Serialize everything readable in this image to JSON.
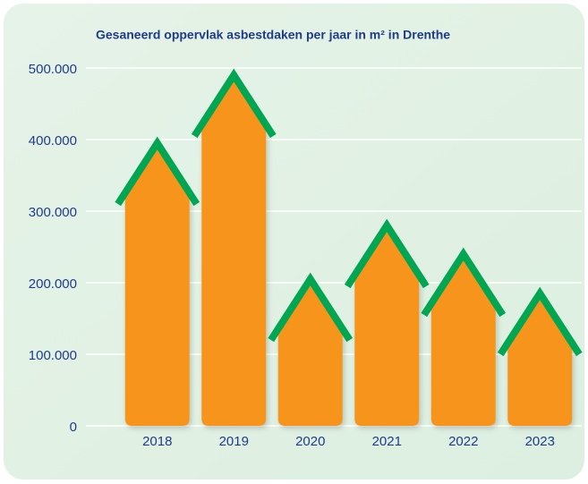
{
  "chart_data": {
    "type": "bar",
    "title": "Gesaneerd oppervlak asbestdaken per jaar in m² in Drenthe",
    "categories": [
      "2018",
      "2019",
      "2020",
      "2021",
      "2022",
      "2023"
    ],
    "values": [
      395000,
      490000,
      205000,
      280000,
      240000,
      185000
    ],
    "color": "#f7941d",
    "roof_color": "#00a651",
    "ylim": [
      0,
      500000
    ],
    "yticks": [
      0,
      {
        "value": 100000,
        "label": "100.000"
      },
      {
        "value": 200000,
        "label": "200.000"
      },
      {
        "value": 300000,
        "label": "300.000"
      },
      {
        "value": 400000,
        "label": "400.000"
      },
      {
        "value": 500000,
        "label": "500.000"
      }
    ],
    "grid": true
  }
}
